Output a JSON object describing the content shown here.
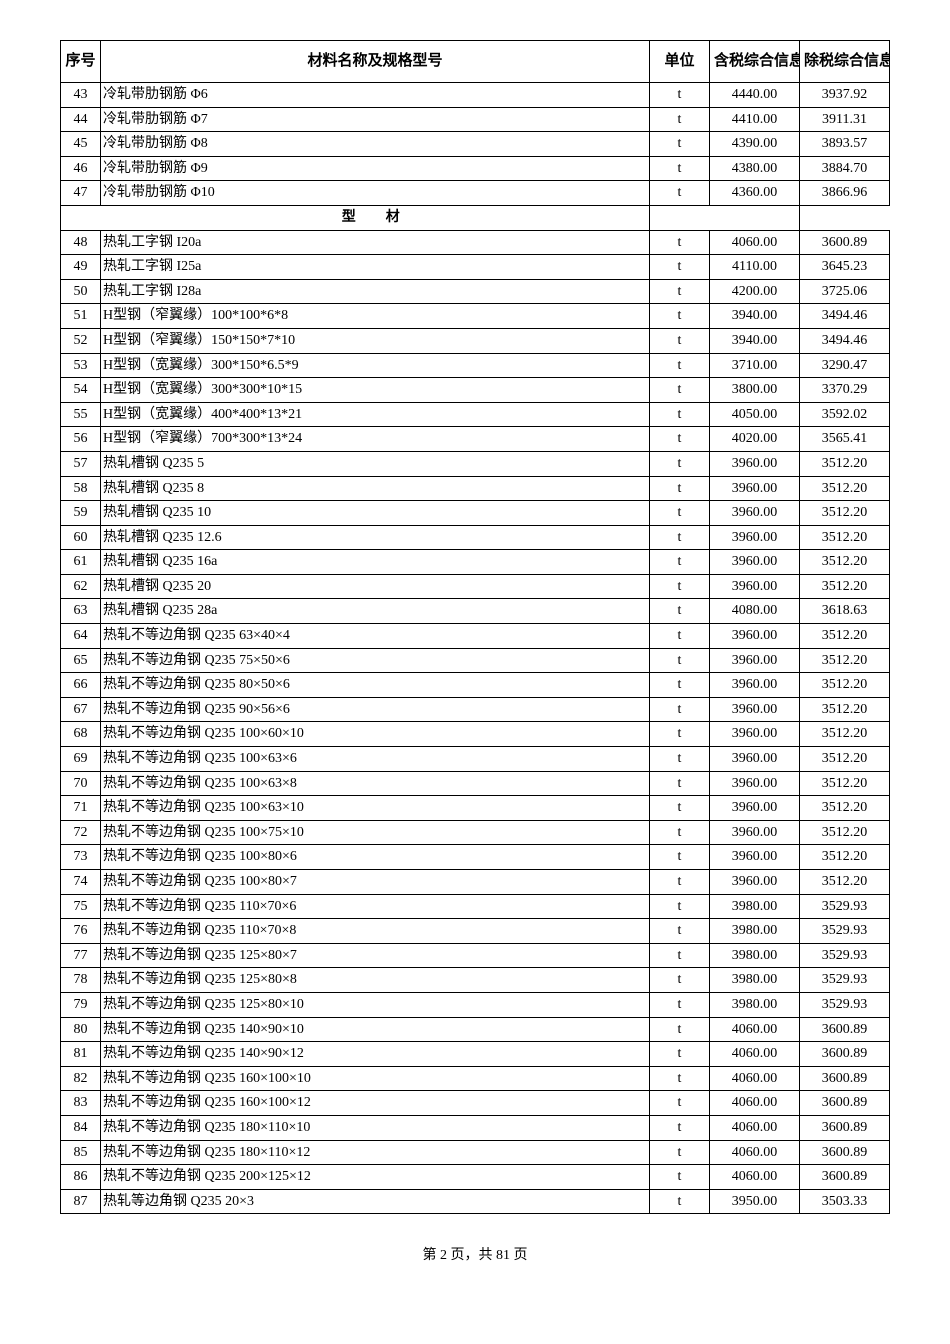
{
  "headers": {
    "seq": "序号",
    "name": "材料名称及规格型号",
    "unit": "单位",
    "price1": "含税综合信息价",
    "price2": "除税综合信息价"
  },
  "section": "型　材",
  "rows": [
    {
      "seq": "43",
      "name": "冷轧带肋钢筋 Φ6",
      "unit": "t",
      "p1": "4440.00",
      "p2": "3937.92"
    },
    {
      "seq": "44",
      "name": "冷轧带肋钢筋 Φ7",
      "unit": "t",
      "p1": "4410.00",
      "p2": "3911.31"
    },
    {
      "seq": "45",
      "name": "冷轧带肋钢筋 Φ8",
      "unit": "t",
      "p1": "4390.00",
      "p2": "3893.57"
    },
    {
      "seq": "46",
      "name": "冷轧带肋钢筋 Φ9",
      "unit": "t",
      "p1": "4380.00",
      "p2": "3884.70"
    },
    {
      "seq": "47",
      "name": "冷轧带肋钢筋 Φ10",
      "unit": "t",
      "p1": "4360.00",
      "p2": "3866.96"
    }
  ],
  "rows2": [
    {
      "seq": "48",
      "name": "热轧工字钢 I20a",
      "unit": "t",
      "p1": "4060.00",
      "p2": "3600.89"
    },
    {
      "seq": "49",
      "name": "热轧工字钢 I25a",
      "unit": "t",
      "p1": "4110.00",
      "p2": "3645.23"
    },
    {
      "seq": "50",
      "name": "热轧工字钢 I28a",
      "unit": "t",
      "p1": "4200.00",
      "p2": "3725.06"
    },
    {
      "seq": "51",
      "name": "H型钢（窄翼缘）100*100*6*8",
      "unit": "t",
      "p1": "3940.00",
      "p2": "3494.46"
    },
    {
      "seq": "52",
      "name": "H型钢（窄翼缘）150*150*7*10",
      "unit": "t",
      "p1": "3940.00",
      "p2": "3494.46"
    },
    {
      "seq": "53",
      "name": "H型钢（宽翼缘）300*150*6.5*9",
      "unit": "t",
      "p1": "3710.00",
      "p2": "3290.47"
    },
    {
      "seq": "54",
      "name": "H型钢（宽翼缘）300*300*10*15",
      "unit": "t",
      "p1": "3800.00",
      "p2": "3370.29"
    },
    {
      "seq": "55",
      "name": "H型钢（宽翼缘）400*400*13*21",
      "unit": "t",
      "p1": "4050.00",
      "p2": "3592.02"
    },
    {
      "seq": "56",
      "name": "H型钢（窄翼缘）700*300*13*24",
      "unit": "t",
      "p1": "4020.00",
      "p2": "3565.41"
    },
    {
      "seq": "57",
      "name": "热轧槽钢 Q235 5",
      "unit": "t",
      "p1": "3960.00",
      "p2": "3512.20"
    },
    {
      "seq": "58",
      "name": "热轧槽钢 Q235 8",
      "unit": "t",
      "p1": "3960.00",
      "p2": "3512.20"
    },
    {
      "seq": "59",
      "name": "热轧槽钢 Q235 10",
      "unit": "t",
      "p1": "3960.00",
      "p2": "3512.20"
    },
    {
      "seq": "60",
      "name": "热轧槽钢 Q235 12.6",
      "unit": "t",
      "p1": "3960.00",
      "p2": "3512.20"
    },
    {
      "seq": "61",
      "name": "热轧槽钢 Q235 16a",
      "unit": "t",
      "p1": "3960.00",
      "p2": "3512.20"
    },
    {
      "seq": "62",
      "name": "热轧槽钢 Q235 20",
      "unit": "t",
      "p1": "3960.00",
      "p2": "3512.20"
    },
    {
      "seq": "63",
      "name": "热轧槽钢 Q235 28a",
      "unit": "t",
      "p1": "4080.00",
      "p2": "3618.63"
    },
    {
      "seq": "64",
      "name": "热轧不等边角钢 Q235 63×40×4",
      "unit": "t",
      "p1": "3960.00",
      "p2": "3512.20"
    },
    {
      "seq": "65",
      "name": "热轧不等边角钢 Q235 75×50×6",
      "unit": "t",
      "p1": "3960.00",
      "p2": "3512.20"
    },
    {
      "seq": "66",
      "name": "热轧不等边角钢 Q235 80×50×6",
      "unit": "t",
      "p1": "3960.00",
      "p2": "3512.20"
    },
    {
      "seq": "67",
      "name": "热轧不等边角钢 Q235 90×56×6",
      "unit": "t",
      "p1": "3960.00",
      "p2": "3512.20"
    },
    {
      "seq": "68",
      "name": "热轧不等边角钢 Q235 100×60×10",
      "unit": "t",
      "p1": "3960.00",
      "p2": "3512.20"
    },
    {
      "seq": "69",
      "name": "热轧不等边角钢 Q235 100×63×6",
      "unit": "t",
      "p1": "3960.00",
      "p2": "3512.20"
    },
    {
      "seq": "70",
      "name": "热轧不等边角钢 Q235 100×63×8",
      "unit": "t",
      "p1": "3960.00",
      "p2": "3512.20"
    },
    {
      "seq": "71",
      "name": "热轧不等边角钢 Q235 100×63×10",
      "unit": "t",
      "p1": "3960.00",
      "p2": "3512.20"
    },
    {
      "seq": "72",
      "name": "热轧不等边角钢 Q235 100×75×10",
      "unit": "t",
      "p1": "3960.00",
      "p2": "3512.20"
    },
    {
      "seq": "73",
      "name": "热轧不等边角钢 Q235 100×80×6",
      "unit": "t",
      "p1": "3960.00",
      "p2": "3512.20"
    },
    {
      "seq": "74",
      "name": "热轧不等边角钢 Q235 100×80×7",
      "unit": "t",
      "p1": "3960.00",
      "p2": "3512.20"
    },
    {
      "seq": "75",
      "name": "热轧不等边角钢 Q235 110×70×6",
      "unit": "t",
      "p1": "3980.00",
      "p2": "3529.93"
    },
    {
      "seq": "76",
      "name": "热轧不等边角钢 Q235 110×70×8",
      "unit": "t",
      "p1": "3980.00",
      "p2": "3529.93"
    },
    {
      "seq": "77",
      "name": "热轧不等边角钢 Q235 125×80×7",
      "unit": "t",
      "p1": "3980.00",
      "p2": "3529.93"
    },
    {
      "seq": "78",
      "name": "热轧不等边角钢 Q235 125×80×8",
      "unit": "t",
      "p1": "3980.00",
      "p2": "3529.93"
    },
    {
      "seq": "79",
      "name": "热轧不等边角钢 Q235 125×80×10",
      "unit": "t",
      "p1": "3980.00",
      "p2": "3529.93"
    },
    {
      "seq": "80",
      "name": "热轧不等边角钢 Q235 140×90×10",
      "unit": "t",
      "p1": "4060.00",
      "p2": "3600.89"
    },
    {
      "seq": "81",
      "name": "热轧不等边角钢 Q235 140×90×12",
      "unit": "t",
      "p1": "4060.00",
      "p2": "3600.89"
    },
    {
      "seq": "82",
      "name": "热轧不等边角钢 Q235 160×100×10",
      "unit": "t",
      "p1": "4060.00",
      "p2": "3600.89"
    },
    {
      "seq": "83",
      "name": "热轧不等边角钢 Q235 160×100×12",
      "unit": "t",
      "p1": "4060.00",
      "p2": "3600.89"
    },
    {
      "seq": "84",
      "name": "热轧不等边角钢 Q235 180×110×10",
      "unit": "t",
      "p1": "4060.00",
      "p2": "3600.89"
    },
    {
      "seq": "85",
      "name": "热轧不等边角钢 Q235 180×110×12",
      "unit": "t",
      "p1": "4060.00",
      "p2": "3600.89"
    },
    {
      "seq": "86",
      "name": "热轧不等边角钢 Q235 200×125×12",
      "unit": "t",
      "p1": "4060.00",
      "p2": "3600.89"
    },
    {
      "seq": "87",
      "name": "热轧等边角钢 Q235 20×3",
      "unit": "t",
      "p1": "3950.00",
      "p2": "3503.33"
    }
  ],
  "footer": "第 2 页，共 81 页",
  "styling": {
    "font_family": "SimSun",
    "border_color": "#000000",
    "background_color": "#ffffff",
    "text_color": "#000000",
    "header_fontsize": 15,
    "cell_fontsize": 14,
    "col_widths": {
      "seq": 40,
      "unit": 60,
      "p1": 90,
      "p2": 90
    }
  }
}
